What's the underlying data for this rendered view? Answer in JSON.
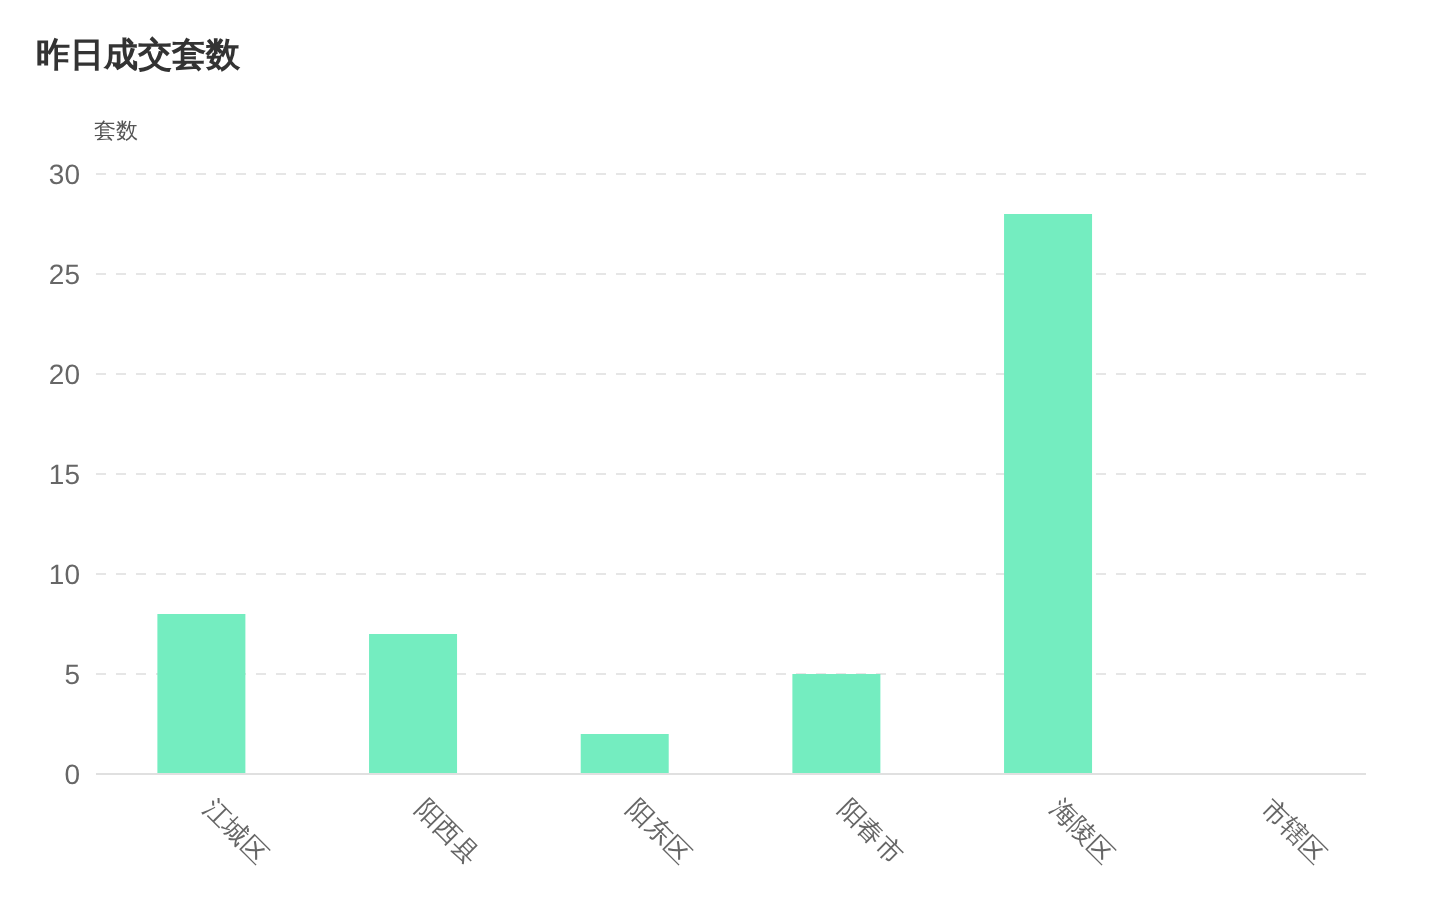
{
  "chart_data": {
    "type": "bar",
    "title": "昨日成交套数",
    "ylabel": "套数",
    "categories": [
      "江城区",
      "阳西县",
      "阳东区",
      "阳春市",
      "海陵区",
      "市辖区"
    ],
    "values": [
      8,
      7,
      2,
      5,
      28,
      0
    ],
    "color": "#74edc0",
    "ylim": [
      0,
      30
    ],
    "yticks": [
      0,
      5,
      10,
      15,
      20,
      25,
      30
    ],
    "grid": "y",
    "legend": false
  }
}
